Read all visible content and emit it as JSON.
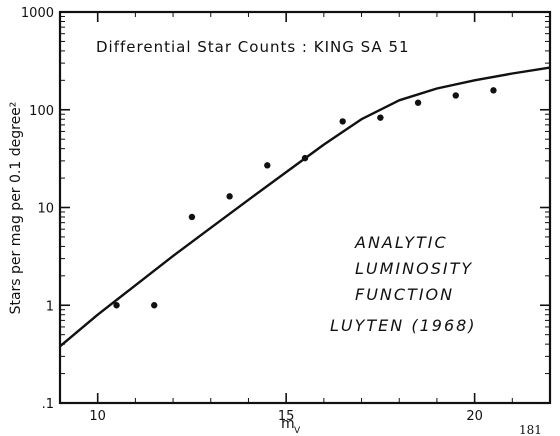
{
  "chart_data": {
    "type": "scatter",
    "title": "Differential Star Counts :  KING SA 51",
    "xlabel": "m",
    "xlabel_sub": "V",
    "ylabel": "Stars per mag per 0.1 degree²",
    "xlim": [
      9,
      22
    ],
    "ylim": [
      0.1,
      1000
    ],
    "yscale": "log",
    "x_ticks": [
      10,
      15,
      20
    ],
    "x_tick_labels": [
      "10",
      "15",
      "20"
    ],
    "y_ticks": [
      0.1,
      1,
      10,
      100,
      1000
    ],
    "y_tick_labels": [
      ".1",
      "1",
      "10",
      "100",
      "1000"
    ],
    "grid": false,
    "series": [
      {
        "kind": "points",
        "x": [
          10.5,
          11.5,
          12.5,
          13.5,
          14.5,
          15.5,
          16.5,
          17.5,
          18.5,
          19.5,
          20.5
        ],
        "y": [
          1.0,
          1.0,
          8.0,
          13,
          27,
          32,
          76,
          83,
          118,
          140,
          158
        ]
      },
      {
        "kind": "curve",
        "x": [
          9.0,
          10.0,
          11.0,
          12.0,
          13.0,
          14.0,
          15.0,
          16.0,
          17.0,
          18.0,
          19.0,
          20.0,
          21.0,
          22.0
        ],
        "y": [
          0.38,
          0.8,
          1.6,
          3.2,
          6.2,
          12,
          23,
          44,
          80,
          125,
          165,
          200,
          235,
          270
        ]
      }
    ],
    "annotations": [
      "ANALYTIC",
      "LUMINOSITY",
      "FUNCTION",
      "LUYTEN (1968)"
    ]
  },
  "corner_mark": "181"
}
